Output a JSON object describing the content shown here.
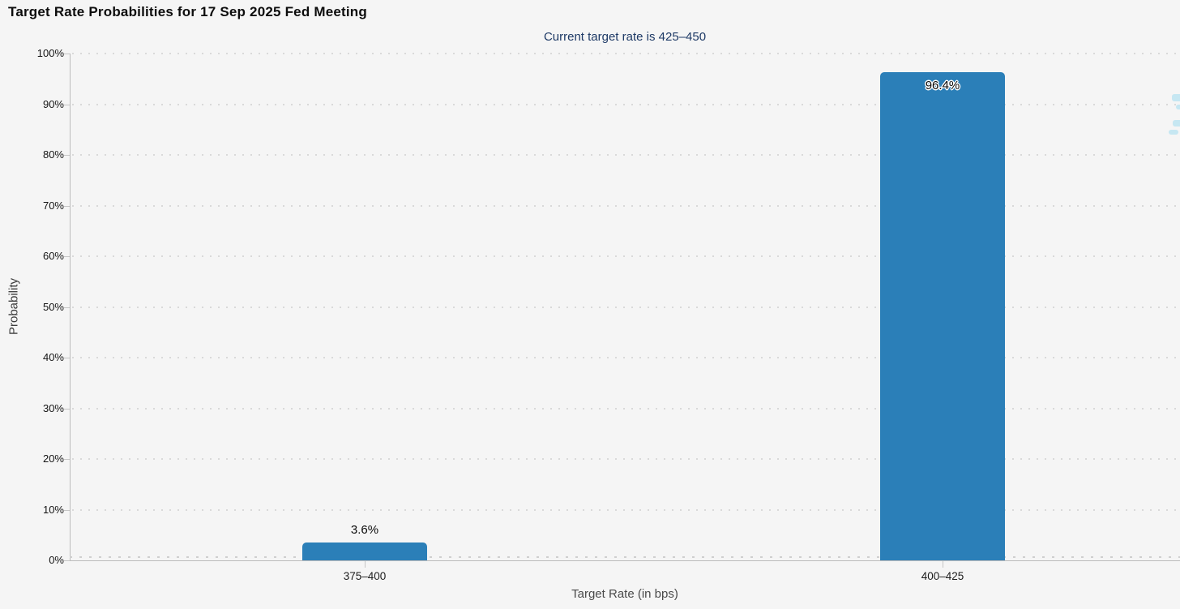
{
  "chart_data": {
    "type": "bar",
    "title": "Target Rate Probabilities for 17 Sep 2025 Fed Meeting",
    "subtitle": "Current target rate is 425–450",
    "xlabel": "Target Rate (in bps)",
    "ylabel": "Probability",
    "categories": [
      "375–400",
      "400–425"
    ],
    "values": [
      3.6,
      96.4
    ],
    "value_labels": [
      "3.6%",
      "96.4%"
    ],
    "ylim": [
      0,
      100
    ],
    "ytick_labels": [
      "0%",
      "10%",
      "20%",
      "30%",
      "40%",
      "50%",
      "60%",
      "70%",
      "80%",
      "90%",
      "100%"
    ],
    "grid": "horizontal-dotted",
    "legend": "none",
    "bar_color": "#2b7fb8"
  },
  "colors": {
    "background": "#f5f5f5",
    "bar": "#2b7fb8",
    "title": "#0d0d0d",
    "subtitle": "#1e3a66",
    "axis": "#bcbcbc",
    "grid_dots": "#d9d9d9"
  }
}
